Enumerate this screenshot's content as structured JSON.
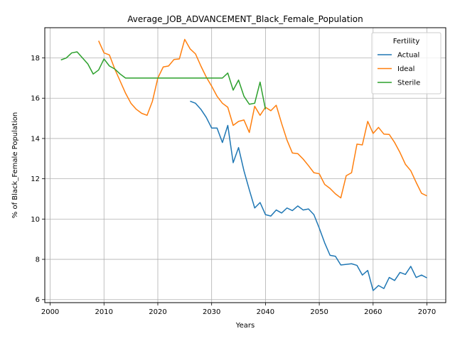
{
  "chart_data": {
    "type": "line",
    "title": "Average_JOB_ADVANCEMENT_Black_Female_Population",
    "xlabel": "Years",
    "ylabel": "% of Black_Female Population",
    "xlim": [
      1999,
      2073.5
    ],
    "ylim": [
      5.85,
      19.5
    ],
    "xticks": [
      2000,
      2010,
      2020,
      2030,
      2040,
      2050,
      2060,
      2070
    ],
    "yticks": [
      6,
      8,
      10,
      12,
      14,
      16,
      18
    ],
    "grid": true,
    "legend": {
      "title": "Fertility",
      "placement": "top-right"
    },
    "series": [
      {
        "name": "Actual",
        "color": "#1f77b4",
        "x": [
          2026,
          2027,
          2028,
          2029,
          2030,
          2031,
          2032,
          2033,
          2034,
          2035,
          2036,
          2037,
          2038,
          2039,
          2040,
          2041,
          2042,
          2043,
          2044,
          2045,
          2046,
          2047,
          2048,
          2049,
          2050,
          2051,
          2052,
          2053,
          2054,
          2055,
          2056,
          2057,
          2058,
          2059,
          2060,
          2061,
          2062,
          2063,
          2064,
          2065,
          2066,
          2067,
          2068,
          2069,
          2070
        ],
        "y": [
          15.85,
          15.75,
          15.45,
          15.05,
          14.52,
          14.52,
          13.8,
          14.65,
          12.8,
          13.55,
          12.4,
          11.45,
          10.55,
          10.82,
          10.22,
          10.15,
          10.45,
          10.3,
          10.55,
          10.42,
          10.65,
          10.45,
          10.5,
          10.22,
          9.55,
          8.82,
          8.2,
          8.15,
          7.72,
          7.75,
          7.78,
          7.7,
          7.22,
          7.45,
          6.45,
          6.7,
          6.55,
          7.1,
          6.95,
          7.35,
          7.25,
          7.65,
          7.1,
          7.22,
          7.08
        ]
      },
      {
        "name": "Ideal",
        "color": "#ff7f0e",
        "x": [
          2009,
          2010,
          2011,
          2012,
          2013,
          2014,
          2015,
          2016,
          2017,
          2018,
          2019,
          2020,
          2021,
          2022,
          2023,
          2024,
          2025,
          2026,
          2027,
          2028,
          2029,
          2030,
          2031,
          2032,
          2033,
          2034,
          2035,
          2036,
          2037,
          2038,
          2039,
          2040,
          2041,
          2042,
          2043,
          2044,
          2045,
          2046,
          2047,
          2048,
          2049,
          2050,
          2051,
          2052,
          2053,
          2054,
          2055,
          2056,
          2057,
          2058,
          2059,
          2060,
          2061,
          2062,
          2063,
          2064,
          2065,
          2066,
          2067,
          2068,
          2069,
          2070
        ],
        "y": [
          18.85,
          18.25,
          18.15,
          17.45,
          16.85,
          16.25,
          15.75,
          15.45,
          15.25,
          15.15,
          15.85,
          17.0,
          17.55,
          17.6,
          17.92,
          17.95,
          18.92,
          18.45,
          18.2,
          17.6,
          17.05,
          16.6,
          16.1,
          15.75,
          15.55,
          14.65,
          14.85,
          14.92,
          14.3,
          15.6,
          15.15,
          15.55,
          15.38,
          15.65,
          14.75,
          13.92,
          13.28,
          13.25,
          12.98,
          12.65,
          12.3,
          12.25,
          11.72,
          11.52,
          11.25,
          11.05,
          12.15,
          12.3,
          13.72,
          13.68,
          14.85,
          14.25,
          14.55,
          14.22,
          14.2,
          13.8,
          13.3,
          12.72,
          12.4,
          11.82,
          11.28,
          11.15
        ]
      },
      {
        "name": "Sterile",
        "color": "#2ca02c",
        "x": [
          2002,
          2003,
          2004,
          2005,
          2006,
          2007,
          2008,
          2009,
          2010,
          2011,
          2012,
          2013,
          2014,
          2015,
          2016,
          2017,
          2018,
          2019,
          2020,
          2021,
          2022,
          2023,
          2024,
          2025,
          2026,
          2027,
          2028,
          2029,
          2030,
          2031,
          2032,
          2033,
          2034,
          2035,
          2036,
          2037,
          2038,
          2039,
          2040
        ],
        "y": [
          17.9,
          18.0,
          18.25,
          18.3,
          18.0,
          17.7,
          17.2,
          17.4,
          17.95,
          17.6,
          17.45,
          17.2,
          17.0,
          17.0,
          17.0,
          17.0,
          17.0,
          17.0,
          17.0,
          17.0,
          17.0,
          17.0,
          17.0,
          17.0,
          17.0,
          17.0,
          17.0,
          17.0,
          17.0,
          17.0,
          17.0,
          17.25,
          16.4,
          16.9,
          16.1,
          15.7,
          15.75,
          16.8,
          15.45
        ]
      }
    ]
  }
}
